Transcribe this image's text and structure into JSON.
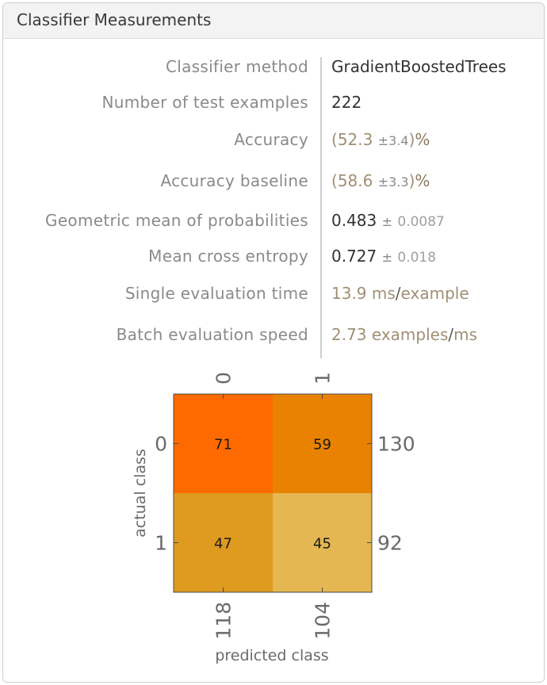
{
  "window": {
    "title": "Classifier Measurements"
  },
  "measurements": {
    "method": {
      "label": "Classifier method",
      "value": "GradientBoostedTrees"
    },
    "test_examples": {
      "label": "Number of test examples",
      "value": "222"
    },
    "accuracy": {
      "label": "Accuracy",
      "open": "(",
      "value": "52.3",
      "pm": "±",
      "err": "3.4",
      "close": ")",
      "unit": "%"
    },
    "accuracy_baseline": {
      "label": "Accuracy baseline",
      "open": "(",
      "value": "58.6",
      "pm": "±",
      "err": "3.3",
      "close": ")",
      "unit": "%"
    },
    "geo_mean": {
      "label": "Geometric mean of probabilities",
      "value": "0.483",
      "pm": "±",
      "err": "0.0087"
    },
    "cross_entropy": {
      "label": "Mean cross entropy",
      "value": "0.727",
      "pm": "±",
      "err": "0.018"
    },
    "eval_time": {
      "label": "Single evaluation time",
      "value": "13.9",
      "unit1": "ms",
      "slash": "/",
      "unit2": "example"
    },
    "batch_speed": {
      "label": "Batch evaluation speed",
      "value": "2.73",
      "unit1": "examples",
      "slash": "/",
      "unit2": "ms"
    }
  },
  "chart_data": {
    "type": "heatmap",
    "title": "",
    "xlabel": "predicted class",
    "ylabel": "actual class",
    "x_categories": [
      "0",
      "1"
    ],
    "y_categories": [
      "0",
      "1"
    ],
    "values": [
      [
        71,
        59
      ],
      [
        47,
        45
      ]
    ],
    "row_totals": [
      "130",
      "92"
    ],
    "col_totals": [
      "118",
      "104"
    ],
    "colors": [
      [
        "#ff6a00",
        "#e98200"
      ],
      [
        "#de9b20",
        "#e4b752"
      ]
    ],
    "grid": false
  }
}
